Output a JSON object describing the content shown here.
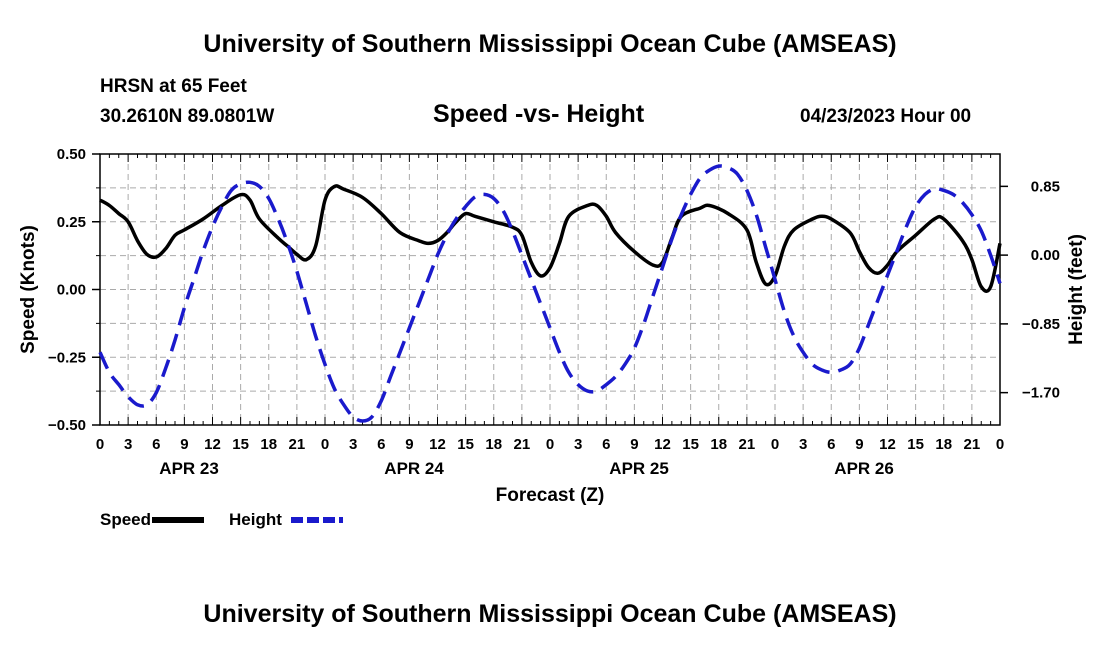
{
  "page": {
    "title_top": "University of Southern Mississippi Ocean Cube (AMSEAS)",
    "title_bottom": "University of Southern Mississippi Ocean Cube (AMSEAS)",
    "station_line": "HRSN at 65 Feet",
    "coords_line": "30.2610N  89.0801W",
    "chart_title": "Speed -vs- Height",
    "date_line": "04/23/2023 Hour 00"
  },
  "chart_data": {
    "type": "line",
    "title": "Speed -vs- Height",
    "xlabel": "Forecast (Z)",
    "ylabel": "Speed (Knots)",
    "y2label": "Height (feet)",
    "x_hours_range": [
      0,
      96
    ],
    "ylim": [
      -0.5,
      0.5
    ],
    "y2lim": [
      -2.1,
      1.25
    ],
    "yticks": [
      -0.5,
      -0.25,
      0.0,
      0.25,
      0.5
    ],
    "ytick_labels": [
      "−0.50",
      "−0.25",
      "0.00",
      "0.25",
      "0.50"
    ],
    "y2ticks": [
      -1.7,
      -0.85,
      0.0,
      0.85
    ],
    "y2tick_labels": [
      "−1.70",
      "−0.85",
      "0.00",
      "0.85"
    ],
    "xtick_hours": [
      0,
      3,
      6,
      9,
      12,
      15,
      18,
      21,
      24,
      27,
      30,
      33,
      36,
      39,
      42,
      45,
      48,
      51,
      54,
      57,
      60,
      63,
      66,
      69,
      72,
      75,
      78,
      81,
      84,
      87,
      90,
      93,
      96
    ],
    "xtick_labels": [
      "0",
      "3",
      "6",
      "9",
      "12",
      "15",
      "18",
      "21",
      "0",
      "3",
      "6",
      "9",
      "12",
      "15",
      "18",
      "21",
      "0",
      "3",
      "6",
      "9",
      "12",
      "15",
      "18",
      "21",
      "0",
      "3",
      "6",
      "9",
      "12",
      "15",
      "18",
      "21",
      "0"
    ],
    "day_labels": [
      {
        "label": "APR 23",
        "hour": 9.5
      },
      {
        "label": "APR 24",
        "hour": 33.5
      },
      {
        "label": "APR 25",
        "hour": 57.5
      },
      {
        "label": "APR 26",
        "hour": 81.5
      }
    ],
    "grid": true,
    "series": [
      {
        "name": "Speed",
        "axis": "left",
        "color": "#000000",
        "dash": "solid",
        "points": [
          [
            0,
            0.33
          ],
          [
            1,
            0.31
          ],
          [
            2,
            0.28
          ],
          [
            3,
            0.25
          ],
          [
            4,
            0.18
          ],
          [
            5,
            0.13
          ],
          [
            6,
            0.12
          ],
          [
            7,
            0.15
          ],
          [
            8,
            0.2
          ],
          [
            9,
            0.22
          ],
          [
            11,
            0.26
          ],
          [
            13,
            0.31
          ],
          [
            15,
            0.35
          ],
          [
            16,
            0.33
          ],
          [
            17,
            0.26
          ],
          [
            19,
            0.19
          ],
          [
            20,
            0.16
          ],
          [
            21,
            0.13
          ],
          [
            22,
            0.11
          ],
          [
            23,
            0.16
          ],
          [
            24,
            0.33
          ],
          [
            25,
            0.38
          ],
          [
            26,
            0.37
          ],
          [
            28,
            0.34
          ],
          [
            30,
            0.28
          ],
          [
            32,
            0.21
          ],
          [
            34,
            0.18
          ],
          [
            35,
            0.17
          ],
          [
            36,
            0.18
          ],
          [
            37,
            0.21
          ],
          [
            38,
            0.25
          ],
          [
            39,
            0.28
          ],
          [
            40,
            0.27
          ],
          [
            42,
            0.25
          ],
          [
            44,
            0.23
          ],
          [
            45,
            0.2
          ],
          [
            46,
            0.1
          ],
          [
            47,
            0.05
          ],
          [
            48,
            0.08
          ],
          [
            49,
            0.17
          ],
          [
            50,
            0.27
          ],
          [
            52,
            0.31
          ],
          [
            53,
            0.31
          ],
          [
            54,
            0.27
          ],
          [
            55,
            0.21
          ],
          [
            57,
            0.14
          ],
          [
            59,
            0.09
          ],
          [
            60,
            0.1
          ],
          [
            61,
            0.19
          ],
          [
            62,
            0.27
          ],
          [
            64,
            0.3
          ],
          [
            65,
            0.31
          ],
          [
            67,
            0.28
          ],
          [
            69,
            0.22
          ],
          [
            70,
            0.1
          ],
          [
            71,
            0.02
          ],
          [
            72,
            0.05
          ],
          [
            73,
            0.16
          ],
          [
            74,
            0.22
          ],
          [
            76,
            0.26
          ],
          [
            77,
            0.27
          ],
          [
            78,
            0.26
          ],
          [
            80,
            0.21
          ],
          [
            81,
            0.14
          ],
          [
            82,
            0.08
          ],
          [
            83,
            0.06
          ],
          [
            84,
            0.09
          ],
          [
            85,
            0.14
          ],
          [
            87,
            0.2
          ],
          [
            89,
            0.26
          ],
          [
            90,
            0.26
          ],
          [
            92,
            0.18
          ],
          [
            93,
            0.11
          ],
          [
            94,
            0.01
          ],
          [
            95,
            0.01
          ],
          [
            96,
            0.17
          ]
        ]
      },
      {
        "name": "Height",
        "axis": "right",
        "color": "#1a1acc",
        "dash": "dashed",
        "points": [
          [
            0,
            -1.2
          ],
          [
            1,
            -1.45
          ],
          [
            2,
            -1.6
          ],
          [
            3,
            -1.75
          ],
          [
            4,
            -1.85
          ],
          [
            5,
            -1.85
          ],
          [
            6,
            -1.7
          ],
          [
            7,
            -1.4
          ],
          [
            8,
            -1.05
          ],
          [
            9,
            -0.65
          ],
          [
            10,
            -0.3
          ],
          [
            11,
            0.05
          ],
          [
            12,
            0.35
          ],
          [
            13,
            0.6
          ],
          [
            14,
            0.8
          ],
          [
            15,
            0.88
          ],
          [
            16,
            0.9
          ],
          [
            17,
            0.85
          ],
          [
            18,
            0.7
          ],
          [
            19,
            0.45
          ],
          [
            20,
            0.15
          ],
          [
            21,
            -0.2
          ],
          [
            22,
            -0.6
          ],
          [
            23,
            -1.0
          ],
          [
            24,
            -1.35
          ],
          [
            25,
            -1.65
          ],
          [
            26,
            -1.85
          ],
          [
            27,
            -2.0
          ],
          [
            28,
            -2.05
          ],
          [
            29,
            -2.0
          ],
          [
            30,
            -1.8
          ],
          [
            31,
            -1.5
          ],
          [
            32,
            -1.2
          ],
          [
            33,
            -0.9
          ],
          [
            34,
            -0.6
          ],
          [
            35,
            -0.3
          ],
          [
            36,
            0.0
          ],
          [
            37,
            0.25
          ],
          [
            38,
            0.45
          ],
          [
            39,
            0.6
          ],
          [
            40,
            0.72
          ],
          [
            41,
            0.75
          ],
          [
            42,
            0.7
          ],
          [
            43,
            0.55
          ],
          [
            44,
            0.3
          ],
          [
            45,
            0.0
          ],
          [
            46,
            -0.3
          ],
          [
            47,
            -0.6
          ],
          [
            48,
            -0.9
          ],
          [
            49,
            -1.2
          ],
          [
            50,
            -1.45
          ],
          [
            51,
            -1.6
          ],
          [
            52,
            -1.68
          ],
          [
            53,
            -1.68
          ],
          [
            54,
            -1.6
          ],
          [
            55,
            -1.5
          ],
          [
            56,
            -1.35
          ],
          [
            57,
            -1.15
          ],
          [
            58,
            -0.85
          ],
          [
            59,
            -0.5
          ],
          [
            60,
            -0.15
          ],
          [
            61,
            0.2
          ],
          [
            62,
            0.5
          ],
          [
            63,
            0.75
          ],
          [
            64,
            0.95
          ],
          [
            65,
            1.05
          ],
          [
            66,
            1.1
          ],
          [
            67,
            1.08
          ],
          [
            68,
            1.0
          ],
          [
            69,
            0.8
          ],
          [
            70,
            0.5
          ],
          [
            71,
            0.1
          ],
          [
            72,
            -0.3
          ],
          [
            73,
            -0.7
          ],
          [
            74,
            -1.0
          ],
          [
            75,
            -1.2
          ],
          [
            76,
            -1.35
          ],
          [
            77,
            -1.42
          ],
          [
            78,
            -1.45
          ],
          [
            79,
            -1.42
          ],
          [
            80,
            -1.35
          ],
          [
            81,
            -1.15
          ],
          [
            82,
            -0.85
          ],
          [
            83,
            -0.55
          ],
          [
            84,
            -0.25
          ],
          [
            85,
            0.05
          ],
          [
            86,
            0.35
          ],
          [
            87,
            0.6
          ],
          [
            88,
            0.75
          ],
          [
            89,
            0.82
          ],
          [
            90,
            0.8
          ],
          [
            91,
            0.75
          ],
          [
            92,
            0.65
          ],
          [
            93,
            0.5
          ],
          [
            94,
            0.3
          ],
          [
            95,
            0.0
          ],
          [
            96,
            -0.35
          ]
        ]
      }
    ],
    "legend": [
      {
        "label": "Speed",
        "color": "#000000",
        "dash": "solid"
      },
      {
        "label": "Height",
        "color": "#1a1acc",
        "dash": "dashed"
      }
    ],
    "legend_position": "bottom-left"
  }
}
